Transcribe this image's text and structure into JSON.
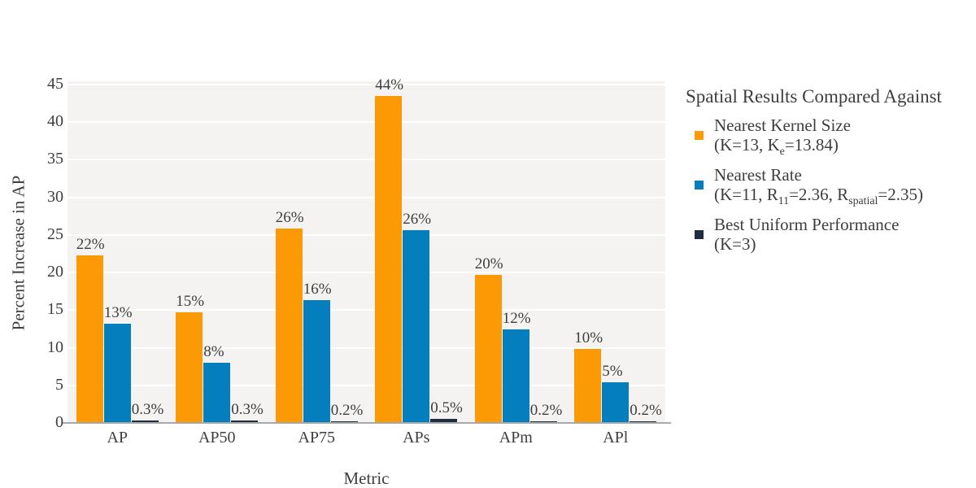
{
  "chart_data": {
    "type": "bar",
    "title": "",
    "xlabel": "Metric",
    "ylabel": "Percent Increase in AP",
    "ylim": [
      0,
      45
    ],
    "yticks": [
      0,
      5,
      10,
      15,
      20,
      25,
      30,
      35,
      40,
      45
    ],
    "grid": "horizontal white gridlines on light gray panel",
    "legend_position": "right",
    "categories": [
      "AP",
      "AP50",
      "AP75",
      "APs",
      "APm",
      "APl"
    ],
    "series": [
      {
        "name": "Nearest Kernel Size (K=13, Ke=13.84)",
        "color": "#FB9A04",
        "values": [
          22.3,
          14.7,
          25.9,
          43.5,
          19.7,
          9.8
        ],
        "labels": [
          "22%",
          "15%",
          "26%",
          "44%",
          "20%",
          "10%"
        ]
      },
      {
        "name": "Nearest Rate (K=11, R11=2.36, Rspatial=2.35)",
        "color": "#047EBC",
        "values": [
          13.2,
          8.0,
          16.3,
          25.6,
          12.4,
          5.4
        ],
        "labels": [
          "13%",
          "8%",
          "16%",
          "26%",
          "12%",
          "5%"
        ]
      },
      {
        "name": "Best Uniform Performance (K=3)",
        "color": "#1F2D41",
        "values": [
          0.3,
          0.3,
          0.2,
          0.5,
          0.2,
          0.2
        ],
        "labels": [
          "0.3%",
          "0.3%",
          "0.2%",
          "0.5%",
          "0.2%",
          "0.2%"
        ]
      }
    ]
  },
  "legend": {
    "title": "Spatial Results Compared Against",
    "items": [
      {
        "color": "#FB9A04",
        "line1": [
          {
            "t": "Nearest Kernel Size"
          }
        ],
        "line2": [
          {
            "t": "(K=13, K"
          },
          {
            "s": "e"
          },
          {
            "t": "=13.84)"
          }
        ]
      },
      {
        "color": "#047EBC",
        "line1": [
          {
            "t": "Nearest Rate"
          }
        ],
        "line2": [
          {
            "t": "(K=11, R"
          },
          {
            "s": "11"
          },
          {
            "t": "=2.36, R"
          },
          {
            "s": "spatial"
          },
          {
            "t": "=2.35)"
          }
        ]
      },
      {
        "color": "#1F2D41",
        "line1": [
          {
            "t": "Best Uniform Performance"
          }
        ],
        "line2": [
          {
            "t": "(K=3)"
          }
        ]
      }
    ]
  },
  "colors": {
    "plot_background": "#F4F3F2",
    "gridline": "#FFFFFF",
    "axis_line": "#A8A8A8",
    "text": "#3E3E3E"
  }
}
